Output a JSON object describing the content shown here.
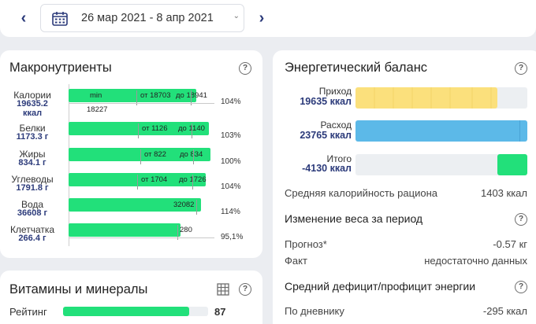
{
  "header": {
    "prev_icon": "chevron-left-icon",
    "next_icon": "chevron-right-icon",
    "calendar_icon": "calendar-icon",
    "date_range": "26 мар 2021 - 8 апр 2021",
    "dropdown_icon": "chevron-down-icon"
  },
  "macros": {
    "title": "Макронутриенты",
    "help": "?",
    "rows": [
      {
        "name": "Калории",
        "value": "19635.2 ккал",
        "value1": "19635.2",
        "value2": "ккал",
        "min": "min",
        "from": "от 18703",
        "to": "до 18941",
        "extra": "18227",
        "pct": "104%",
        "fill": 0.92
      },
      {
        "name": "Белки",
        "value": "1173.3 г",
        "from": "от 1126",
        "to": "до 1140",
        "pct": "103%",
        "fill": 0.92
      },
      {
        "name": "Жиры",
        "value": "834.1 г",
        "from": "от 822",
        "to": "до 834",
        "pct": "100%",
        "fill": 0.9
      },
      {
        "name": "Углеводы",
        "value": "1791.8 г",
        "from": "от 1704",
        "to": "до 1726",
        "pct": "104%",
        "fill": 0.92
      },
      {
        "name": "Вода",
        "value": "36608 г",
        "to": "32082",
        "pct": "114%",
        "fill": 0.91
      },
      {
        "name": "Клетчатка",
        "value": "266.4 г",
        "to": "280",
        "pct": "95,1%",
        "fill": 0.76
      }
    ]
  },
  "vitamins": {
    "title": "Витамины и минералы",
    "table_icon": "table-icon",
    "help": "?",
    "rating_label": "Рейтинг",
    "rating_value": "87",
    "rating_fill": 0.87
  },
  "energy": {
    "title": "Энергетический баланс",
    "help": "?",
    "income_label": "Приход",
    "income_value": "19635 ккал",
    "expense_label": "Расход",
    "expense_value": "23765 ккал",
    "total_label": "Итого",
    "total_value": "-4130 ккал",
    "avg_label": "Средняя калорийность рациона",
    "avg_value": "1403 ккал",
    "weight_title": "Изменение веса за период",
    "forecast_label": "Прогноз*",
    "forecast_value": "-0.57 кг",
    "fact_label": "Факт",
    "fact_value": "недостаточно данных",
    "deficit_title": "Средний дефицит/профицит энергии",
    "diary_label": "По дневнику",
    "diary_value": "-295 ккал",
    "colors": {
      "income": "#fbe07c",
      "expense": "#5cb9e8",
      "total": "#22e07a"
    }
  }
}
